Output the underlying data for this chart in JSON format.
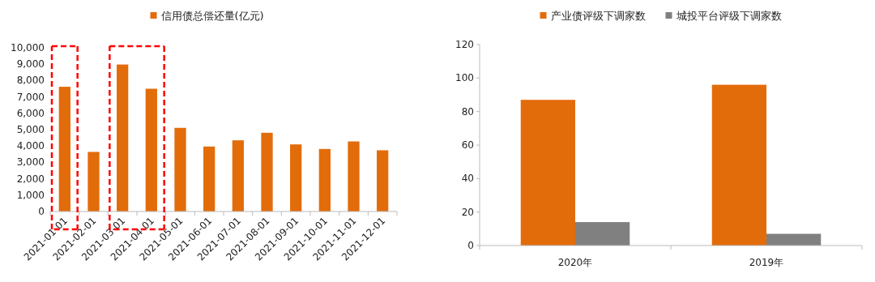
{
  "chart_data": [
    {
      "type": "bar",
      "categories": [
        "2021-01-01",
        "2021-02-01",
        "2021-03-01",
        "2021-04-01",
        "2021-05-01",
        "2021-06-01",
        "2021-07-01",
        "2021-08-01",
        "2021-09-01",
        "2021-10-01",
        "2021-11-01",
        "2021-12-01"
      ],
      "series": [
        {
          "name": "信用债总偿还量(亿元)",
          "color": "#e36c0a",
          "values": [
            7620,
            3640,
            8980,
            7500,
            5110,
            3970,
            4350,
            4810,
            4100,
            3820,
            4280,
            3740
          ]
        }
      ],
      "ylim": [
        0,
        10000
      ],
      "yticks": [
        0,
        {
          "value": 1000,
          "label": "1,000"
        },
        {
          "value": 2000,
          "label": "2,000"
        },
        {
          "value": 3000,
          "label": "3,000"
        },
        {
          "value": 4000,
          "label": "4,000"
        },
        {
          "value": 5000,
          "label": "5,000"
        },
        {
          "value": 6000,
          "label": "6,000"
        },
        {
          "value": 7000,
          "label": "7,000"
        },
        {
          "value": 8000,
          "label": "8,000"
        },
        {
          "value": 9000,
          "label": "9,000"
        },
        {
          "value": 10000,
          "label": "10,000"
        }
      ],
      "legend": "top",
      "grid": false
    },
    {
      "type": "bar",
      "categories": [
        "2020年",
        "2019年"
      ],
      "series": [
        {
          "name": "产业债评级下调家数",
          "color": "#e36c0a",
          "values": [
            87,
            96
          ]
        },
        {
          "name": "城投平台评级下调家数",
          "color": "#808080",
          "values": [
            14,
            7
          ]
        }
      ],
      "ylim": [
        0,
        120
      ],
      "yticks": [
        0,
        20,
        40,
        60,
        80,
        100,
        120
      ],
      "legend": "top",
      "grid": false
    }
  ]
}
